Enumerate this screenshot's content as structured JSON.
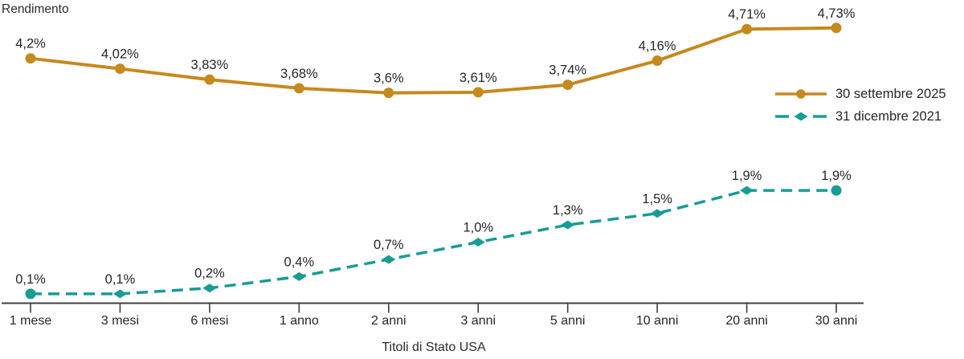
{
  "labels": {
    "y_axis_title": "Rendimento",
    "x_axis_title": "Titoli di Stato USA"
  },
  "colors": {
    "series1": "#C6891E",
    "series2": "#189C95",
    "text": "#262626",
    "axis": "#3F3F3F"
  },
  "chart_data": {
    "type": "line",
    "title": "",
    "xlabel": "Titoli di Stato USA",
    "ylabel": "Rendimento",
    "ylim": [
      0,
      5.2
    ],
    "grid": false,
    "legend_position": "right-upper",
    "categories": [
      "1 mese",
      "3 mesi",
      "6 mesi",
      "1 anno",
      "2 anni",
      "3 anni",
      "5 anni",
      "10 anni",
      "20 anni",
      "30 anni"
    ],
    "series": [
      {
        "name": "30 settembre 2025",
        "color": "#C6891E",
        "style": "solid",
        "marker": "circle",
        "values": [
          4.2,
          4.02,
          3.83,
          3.68,
          3.6,
          3.61,
          3.74,
          4.16,
          4.71,
          4.73
        ],
        "labels": [
          "4,2%",
          "4,02%",
          "3,83%",
          "3,68%",
          "3,6%",
          "3,61%",
          "3,74%",
          "4,16%",
          "4,71%",
          "4,73%"
        ]
      },
      {
        "name": "31 dicembre 2021",
        "color": "#189C95",
        "style": "dashed",
        "marker": "diamond",
        "marker_ends": "circle",
        "values": [
          0.1,
          0.1,
          0.2,
          0.4,
          0.7,
          1.0,
          1.3,
          1.5,
          1.9,
          1.9
        ],
        "labels": [
          "0,1%",
          "0,1%",
          "0,2%",
          "0,4%",
          "0,7%",
          "1,0%",
          "1,3%",
          "1,5%",
          "1,9%",
          "1,9%"
        ]
      }
    ]
  }
}
